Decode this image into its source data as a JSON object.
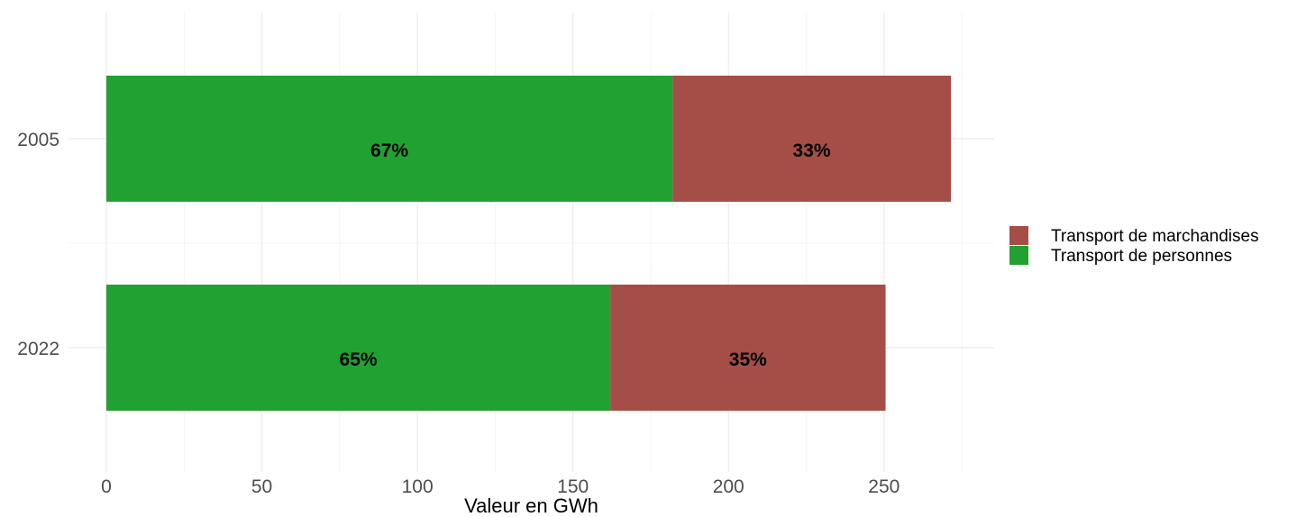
{
  "chart_data": {
    "type": "bar",
    "orientation": "horizontal",
    "stacked": true,
    "categories": [
      "2005",
      "2022"
    ],
    "series": [
      {
        "name": "Transport de personnes",
        "color": "#21a132",
        "values": [
          182,
          162
        ],
        "labels": [
          "67%",
          "65%"
        ]
      },
      {
        "name": "Transport de marchandises",
        "color": "#a54e47",
        "values": [
          89.5,
          88.5
        ],
        "labels": [
          "33%",
          "35%"
        ]
      }
    ],
    "xlabel": "Valeur en GWh",
    "ylabel": "",
    "xlim": [
      0,
      284
    ],
    "x_ticks": [
      0,
      50,
      100,
      150,
      200,
      250
    ],
    "grid": true,
    "legend_position": "right",
    "legend_order": [
      "Transport de marchandises",
      "Transport de personnes"
    ]
  }
}
